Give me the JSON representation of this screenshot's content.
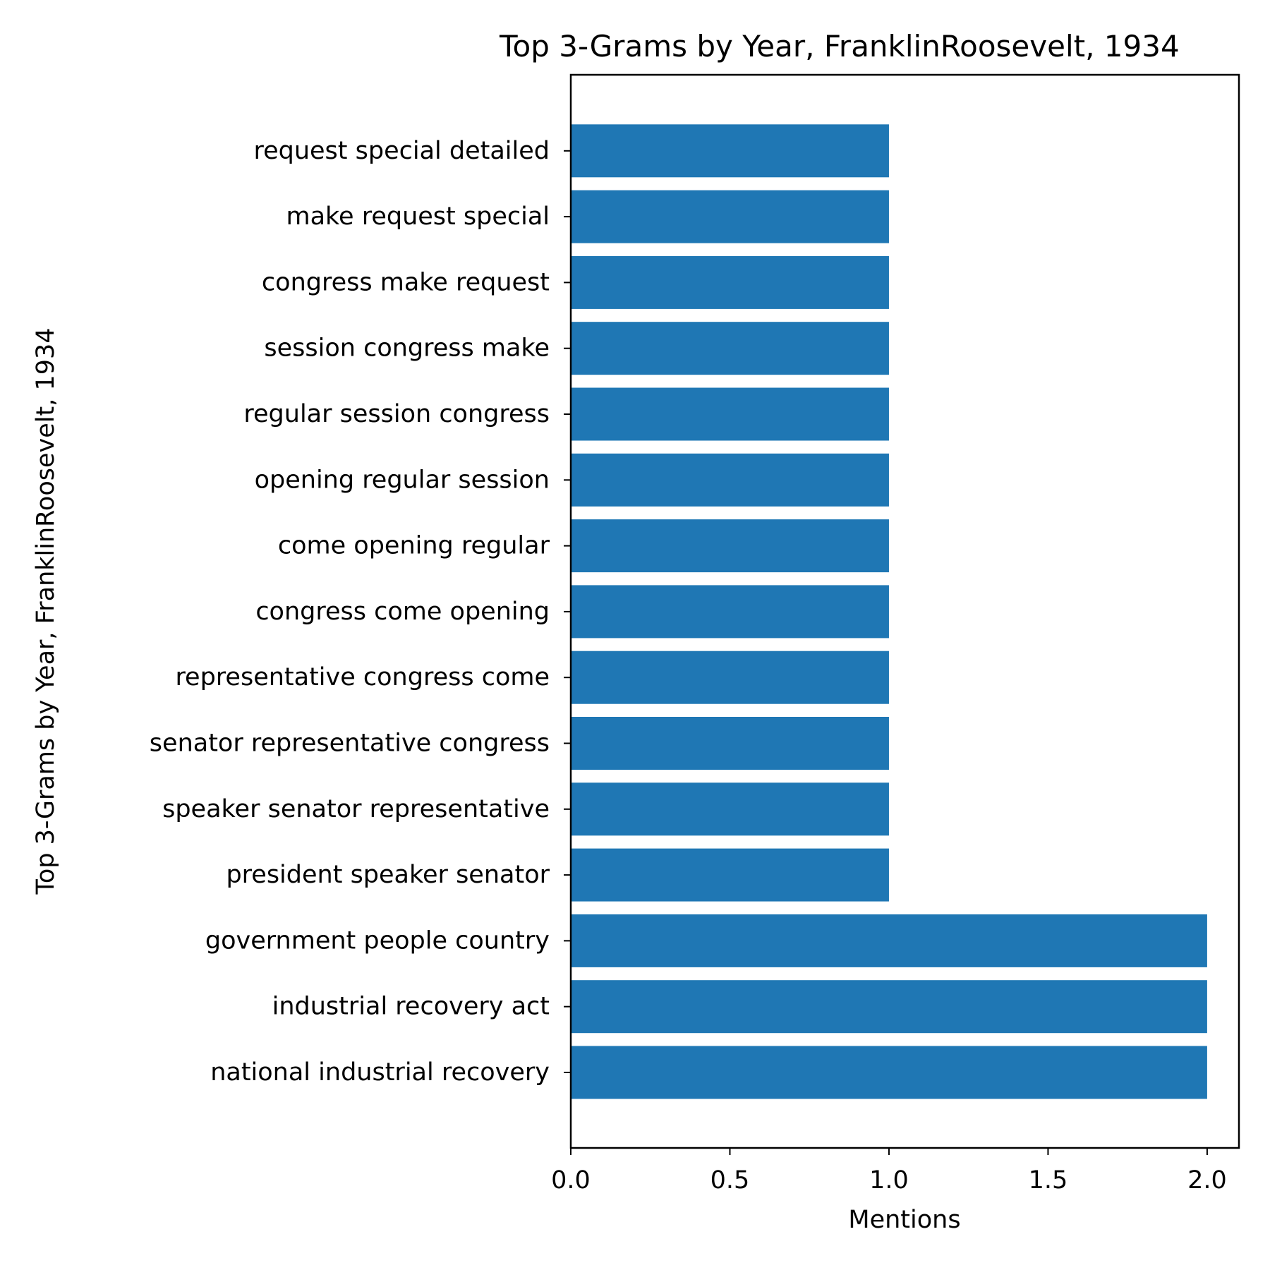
{
  "chart_data": {
    "type": "bar",
    "orientation": "horizontal",
    "title": "Top 3-Grams by Year, FranklinRoosevelt, 1934",
    "xlabel": "Mentions",
    "ylabel": "Top 3-Grams by Year, FranklinRoosevelt, 1934",
    "categories": [
      "national industrial recovery",
      "industrial recovery act",
      "government people country",
      "president speaker senator",
      "speaker senator representative",
      "senator representative congress",
      "representative congress come",
      "congress come opening",
      "come opening regular",
      "opening regular session",
      "regular session congress",
      "session congress make",
      "congress make request",
      "make request special",
      "request special detailed"
    ],
    "values": [
      2,
      2,
      2,
      1,
      1,
      1,
      1,
      1,
      1,
      1,
      1,
      1,
      1,
      1,
      1
    ],
    "xlim": [
      0,
      2.1
    ],
    "xticks": [
      "0.0",
      "0.5",
      "1.0",
      "1.5",
      "2.0"
    ],
    "grid": false,
    "bar_color": "#1f77b4"
  }
}
